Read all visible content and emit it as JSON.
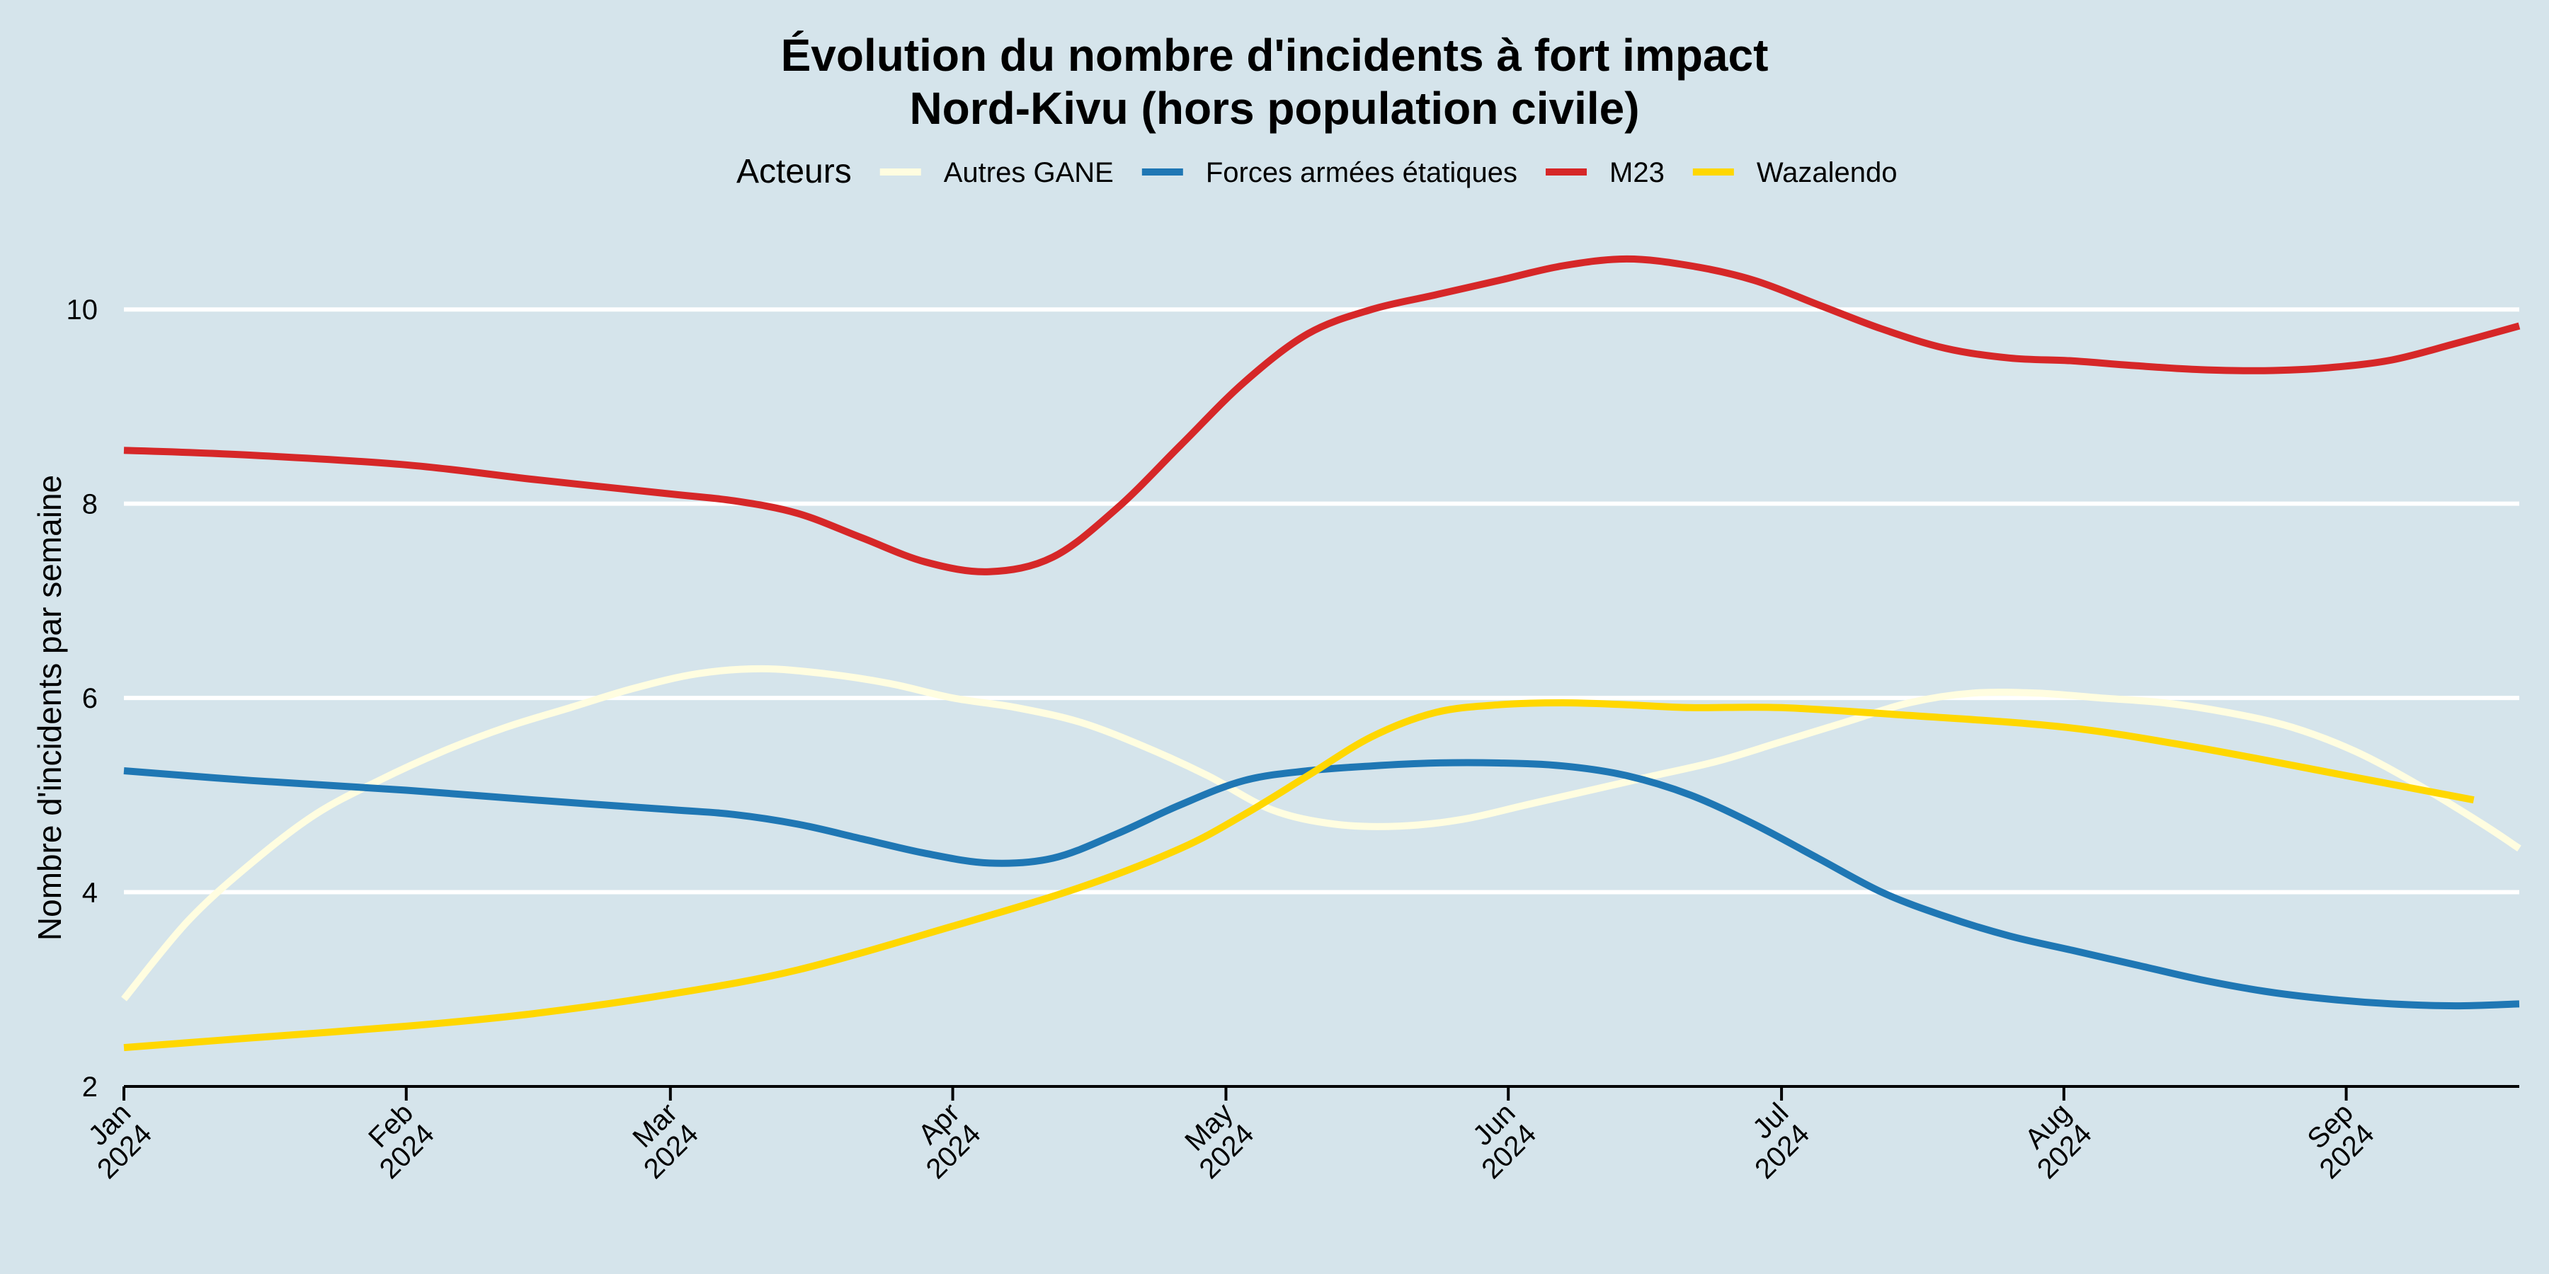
{
  "chart_data": {
    "type": "line",
    "title": "Évolution du nombre d'incidents à fort impact",
    "subtitle": "Nord-Kivu (hors population civile)",
    "xlabel": "",
    "ylabel": "Nombre d'incidents par semaine",
    "legend": {
      "title": "Acteurs",
      "position": "top"
    },
    "ylim": [
      2,
      11
    ],
    "yticks": [
      2,
      4,
      6,
      8,
      10
    ],
    "xlim": [
      "2024-01-01",
      "2024-09-20"
    ],
    "xticks": [
      {
        "date": "2024-01-01",
        "month": "Jan",
        "year": "2024"
      },
      {
        "date": "2024-02-01",
        "month": "Feb",
        "year": "2024"
      },
      {
        "date": "2024-03-01",
        "month": "Mar",
        "year": "2024"
      },
      {
        "date": "2024-04-01",
        "month": "Apr",
        "year": "2024"
      },
      {
        "date": "2024-05-01",
        "month": "May",
        "year": "2024"
      },
      {
        "date": "2024-06-01",
        "month": "Jun",
        "year": "2024"
      },
      {
        "date": "2024-07-01",
        "month": "Jul",
        "year": "2024"
      },
      {
        "date": "2024-08-01",
        "month": "Aug",
        "year": "2024"
      },
      {
        "date": "2024-09-01",
        "month": "Sep",
        "year": "2024"
      }
    ],
    "grid": true,
    "series": [
      {
        "name": "Autres GANE",
        "color": "#fffde0",
        "points": [
          [
            "2024-01-01",
            2.9
          ],
          [
            "2024-01-08",
            3.7
          ],
          [
            "2024-01-15",
            4.3
          ],
          [
            "2024-01-22",
            4.8
          ],
          [
            "2024-01-29",
            5.15
          ],
          [
            "2024-02-05",
            5.45
          ],
          [
            "2024-02-12",
            5.7
          ],
          [
            "2024-02-19",
            5.9
          ],
          [
            "2024-02-26",
            6.1
          ],
          [
            "2024-03-04",
            6.25
          ],
          [
            "2024-03-11",
            6.3
          ],
          [
            "2024-03-18",
            6.25
          ],
          [
            "2024-03-25",
            6.15
          ],
          [
            "2024-04-01",
            6.0
          ],
          [
            "2024-04-08",
            5.9
          ],
          [
            "2024-04-15",
            5.75
          ],
          [
            "2024-04-22",
            5.5
          ],
          [
            "2024-04-29",
            5.2
          ],
          [
            "2024-05-06",
            4.85
          ],
          [
            "2024-05-13",
            4.7
          ],
          [
            "2024-05-20",
            4.68
          ],
          [
            "2024-05-27",
            4.75
          ],
          [
            "2024-06-03",
            4.9
          ],
          [
            "2024-06-10",
            5.05
          ],
          [
            "2024-06-17",
            5.2
          ],
          [
            "2024-06-24",
            5.35
          ],
          [
            "2024-07-01",
            5.55
          ],
          [
            "2024-07-08",
            5.75
          ],
          [
            "2024-07-15",
            5.95
          ],
          [
            "2024-07-22",
            6.05
          ],
          [
            "2024-07-29",
            6.05
          ],
          [
            "2024-08-05",
            6.0
          ],
          [
            "2024-08-12",
            5.95
          ],
          [
            "2024-08-19",
            5.85
          ],
          [
            "2024-08-26",
            5.7
          ],
          [
            "2024-09-02",
            5.45
          ],
          [
            "2024-09-09",
            5.1
          ],
          [
            "2024-09-16",
            4.7
          ],
          [
            "2024-09-20",
            4.45
          ]
        ]
      },
      {
        "name": "Forces armées étatiques",
        "color": "#1f77b4",
        "points": [
          [
            "2024-01-01",
            5.25
          ],
          [
            "2024-01-15",
            5.15
          ],
          [
            "2024-02-01",
            5.05
          ],
          [
            "2024-02-15",
            4.95
          ],
          [
            "2024-03-01",
            4.85
          ],
          [
            "2024-03-08",
            4.8
          ],
          [
            "2024-03-15",
            4.7
          ],
          [
            "2024-03-22",
            4.55
          ],
          [
            "2024-03-29",
            4.4
          ],
          [
            "2024-04-05",
            4.3
          ],
          [
            "2024-04-12",
            4.35
          ],
          [
            "2024-04-19",
            4.6
          ],
          [
            "2024-04-26",
            4.9
          ],
          [
            "2024-05-03",
            5.15
          ],
          [
            "2024-05-10",
            5.25
          ],
          [
            "2024-05-17",
            5.3
          ],
          [
            "2024-05-24",
            5.33
          ],
          [
            "2024-05-31",
            5.33
          ],
          [
            "2024-06-07",
            5.3
          ],
          [
            "2024-06-14",
            5.2
          ],
          [
            "2024-06-21",
            5.0
          ],
          [
            "2024-06-28",
            4.7
          ],
          [
            "2024-07-05",
            4.35
          ],
          [
            "2024-07-12",
            4.0
          ],
          [
            "2024-07-19",
            3.75
          ],
          [
            "2024-07-26",
            3.55
          ],
          [
            "2024-08-02",
            3.4
          ],
          [
            "2024-08-09",
            3.25
          ],
          [
            "2024-08-16",
            3.1
          ],
          [
            "2024-08-23",
            2.98
          ],
          [
            "2024-08-30",
            2.9
          ],
          [
            "2024-09-06",
            2.85
          ],
          [
            "2024-09-13",
            2.83
          ],
          [
            "2024-09-20",
            2.85
          ]
        ]
      },
      {
        "name": "M23",
        "color": "#d62728",
        "points": [
          [
            "2024-01-01",
            8.55
          ],
          [
            "2024-01-15",
            8.5
          ],
          [
            "2024-02-01",
            8.4
          ],
          [
            "2024-02-15",
            8.25
          ],
          [
            "2024-03-01",
            8.1
          ],
          [
            "2024-03-08",
            8.03
          ],
          [
            "2024-03-15",
            7.9
          ],
          [
            "2024-03-22",
            7.65
          ],
          [
            "2024-03-29",
            7.4
          ],
          [
            "2024-04-05",
            7.3
          ],
          [
            "2024-04-12",
            7.45
          ],
          [
            "2024-04-19",
            7.95
          ],
          [
            "2024-04-26",
            8.6
          ],
          [
            "2024-05-03",
            9.25
          ],
          [
            "2024-05-10",
            9.75
          ],
          [
            "2024-05-17",
            10.0
          ],
          [
            "2024-05-24",
            10.15
          ],
          [
            "2024-05-31",
            10.3
          ],
          [
            "2024-06-07",
            10.45
          ],
          [
            "2024-06-14",
            10.52
          ],
          [
            "2024-06-21",
            10.45
          ],
          [
            "2024-06-28",
            10.3
          ],
          [
            "2024-07-05",
            10.05
          ],
          [
            "2024-07-12",
            9.8
          ],
          [
            "2024-07-19",
            9.6
          ],
          [
            "2024-07-26",
            9.5
          ],
          [
            "2024-08-02",
            9.47
          ],
          [
            "2024-08-09",
            9.42
          ],
          [
            "2024-08-16",
            9.38
          ],
          [
            "2024-08-23",
            9.37
          ],
          [
            "2024-08-30",
            9.4
          ],
          [
            "2024-09-06",
            9.48
          ],
          [
            "2024-09-13",
            9.65
          ],
          [
            "2024-09-20",
            9.83
          ]
        ]
      },
      {
        "name": "Wazalendo",
        "color": "#ffd700",
        "points": [
          [
            "2024-01-01",
            2.4
          ],
          [
            "2024-01-15",
            2.5
          ],
          [
            "2024-02-01",
            2.62
          ],
          [
            "2024-02-15",
            2.75
          ],
          [
            "2024-03-01",
            2.95
          ],
          [
            "2024-03-15",
            3.2
          ],
          [
            "2024-04-01",
            3.65
          ],
          [
            "2024-04-15",
            4.05
          ],
          [
            "2024-04-26",
            4.45
          ],
          [
            "2024-05-03",
            4.8
          ],
          [
            "2024-05-10",
            5.2
          ],
          [
            "2024-05-17",
            5.6
          ],
          [
            "2024-05-24",
            5.85
          ],
          [
            "2024-05-31",
            5.93
          ],
          [
            "2024-06-07",
            5.95
          ],
          [
            "2024-06-14",
            5.93
          ],
          [
            "2024-06-21",
            5.9
          ],
          [
            "2024-07-01",
            5.9
          ],
          [
            "2024-07-15",
            5.82
          ],
          [
            "2024-08-01",
            5.7
          ],
          [
            "2024-08-15",
            5.5
          ],
          [
            "2024-09-01",
            5.2
          ],
          [
            "2024-09-15",
            4.95
          ]
        ]
      }
    ]
  }
}
